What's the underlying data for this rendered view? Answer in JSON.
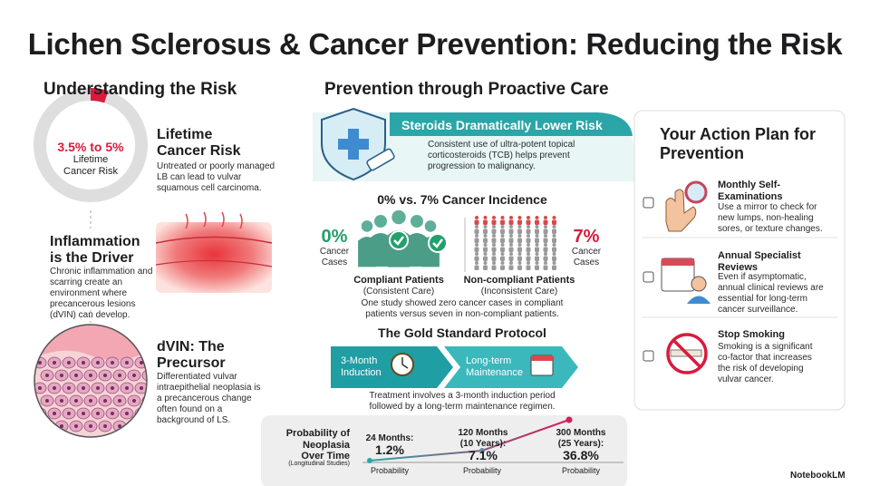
{
  "title": "Lichen Sclerosus & Cancer Prevention: Reducing the Risk",
  "risk": {
    "heading": "Understanding the Risk",
    "donut_value": "3.5% to 5%",
    "donut_label": "Lifetime Cancer Risk",
    "items": [
      {
        "title": "Lifetime Cancer Risk",
        "text": "Untreated or poorly managed LB can lead to vulvar squamous cell carcinoma."
      },
      {
        "title": "Inflammation is the Driver",
        "text": "Chronic inflammation and scarring create an environment where precancerous lesions (dVIN) can develop."
      },
      {
        "title": "dVIN: The Precursor",
        "text": "Differentiated vulvar intraepithelial neoplasia is a precancerous change often found on a background of LS."
      }
    ]
  },
  "prevention": {
    "heading": "Prevention through Proactive Care",
    "banner_title": "Steroids Dramatically Lower Risk",
    "banner_text": "Consistent use of ultra-potent topical corticosteroids (TCB) helps prevent progression to malignancy.",
    "incidence_title": "0% vs. 7% Cancer Incidence",
    "compliant": {
      "value": "0%",
      "value_label": "Cancer Cases",
      "name": "Compliant Patients",
      "note": "(Consistent Care)"
    },
    "noncompliant": {
      "value": "7%",
      "value_label": "Cancer Cases",
      "name": "Non-compliant Patients",
      "note": "(Inconsistent Care)"
    },
    "incidence_caption": "One study showed zero cancer cases in compliant patients versus seven in non-compliant patients.",
    "protocol_title": "The Gold Standard Protocol",
    "steps": [
      "3-Month Induction",
      "Long-term Maintenance"
    ],
    "protocol_caption": "Treatment involves a 3-month induction period followed by a long-term maintenance regimen."
  },
  "neoplasia": {
    "title": "Probability of Neoplasia Over Time",
    "subtitle": "(Longitudinal Studies)",
    "points": [
      {
        "period": "24 Months:",
        "value": "1.2%",
        "label": "Probability"
      },
      {
        "period": "120 Months (10 Years):",
        "value": "7.1%",
        "label": "Probability"
      },
      {
        "period": "300 Months (25 Years):",
        "value": "36.8%",
        "label": "Probability"
      }
    ]
  },
  "action_plan": {
    "title": "Your Action Plan for Prevention",
    "items": [
      {
        "title": "Monthly Self-Examinations",
        "text": "Use a mirror to check for new lumps, non-healing sores, or texture changes."
      },
      {
        "title": "Annual Specialist Reviews",
        "text": "Even if asymptomatic, annual clinical reviews are essential for long-term cancer surveillance."
      },
      {
        "title": "Stop Smoking",
        "text": "Smoking is a significant co-factor that increases the risk of developing vulvar cancer."
      }
    ]
  },
  "brand": "NotebookLM"
}
